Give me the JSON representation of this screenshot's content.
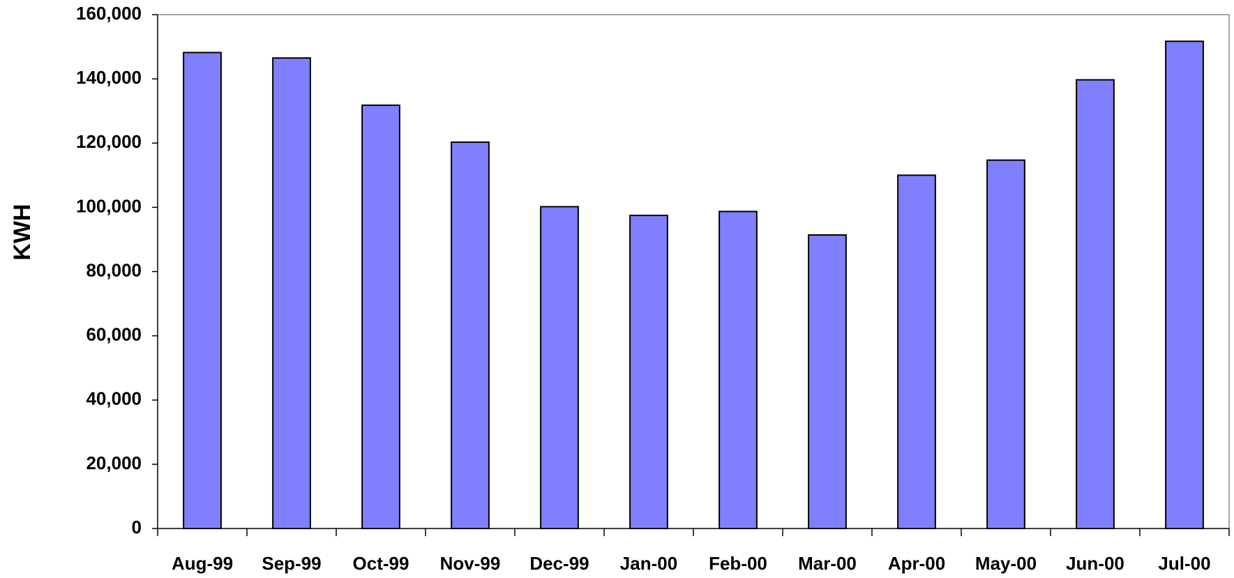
{
  "chart_data": {
    "type": "bar",
    "y_label": "KWH",
    "categories": [
      "Aug-99",
      "Sep-99",
      "Oct-99",
      "Nov-99",
      "Dec-99",
      "Jan-00",
      "Feb-00",
      "Mar-00",
      "Apr-00",
      "May-00",
      "Jun-00",
      "Jul-00"
    ],
    "values": [
      148200,
      146500,
      131800,
      120300,
      100200,
      97500,
      98700,
      91400,
      110000,
      114700,
      139700,
      151700
    ],
    "color": "#8080ff",
    "ylim": [
      0,
      160000
    ],
    "yticks": [
      0,
      {
        "value": 20000,
        "label": "20,000"
      },
      {
        "value": 40000,
        "label": "40,000"
      },
      {
        "value": 60000,
        "label": "60,000"
      },
      {
        "value": 80000,
        "label": "80,000"
      },
      {
        "value": 100000,
        "label": "100,000"
      },
      {
        "value": 120000,
        "label": "120,000"
      },
      {
        "value": 140000,
        "label": "140,000"
      },
      {
        "value": 160000,
        "label": "160,000"
      }
    ],
    "grid": false
  }
}
